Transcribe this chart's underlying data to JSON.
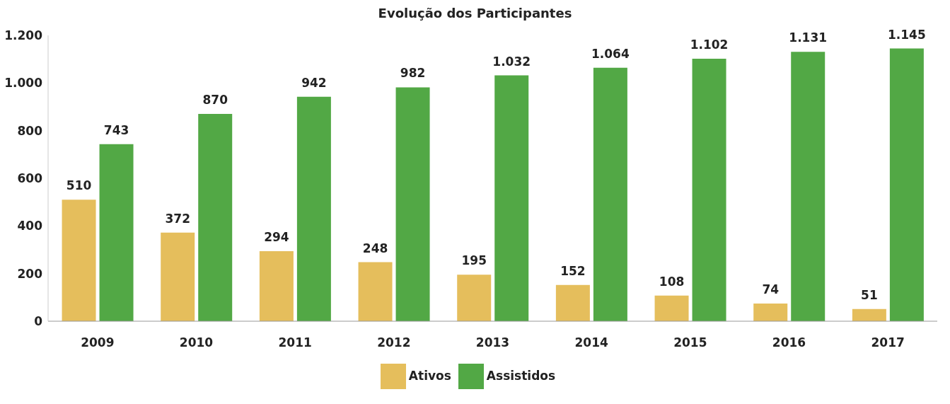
{
  "chart_data": {
    "type": "bar",
    "title": "Evolução dos Participantes",
    "categories": [
      "2009",
      "2010",
      "2011",
      "2012",
      "2013",
      "2014",
      "2015",
      "2016",
      "2017"
    ],
    "series": [
      {
        "name": "Ativos",
        "color": "#e5be5c",
        "values": [
          510,
          372,
          294,
          248,
          195,
          152,
          108,
          74,
          51
        ],
        "value_labels": [
          "510",
          "372",
          "294",
          "248",
          "195",
          "152",
          "108",
          "74",
          "51"
        ]
      },
      {
        "name": "Assistidos",
        "color": "#52a845",
        "values": [
          743,
          870,
          942,
          982,
          1032,
          1064,
          1102,
          1131,
          1145
        ],
        "value_labels": [
          "743",
          "870",
          "942",
          "982",
          "1.032",
          "1.064",
          "1.102",
          "1.131",
          "1.145"
        ]
      }
    ],
    "ylim": [
      0,
      1200
    ],
    "yticks": [
      0,
      {
        "value": 200,
        "label": "200"
      },
      {
        "value": 400,
        "label": "400"
      },
      {
        "value": 600,
        "label": "600"
      },
      {
        "value": 800,
        "label": "800"
      },
      {
        "value": 1000,
        "label": "1.000"
      },
      {
        "value": 1200,
        "label": "1.200"
      }
    ],
    "grid": false,
    "legend": "bottom"
  }
}
